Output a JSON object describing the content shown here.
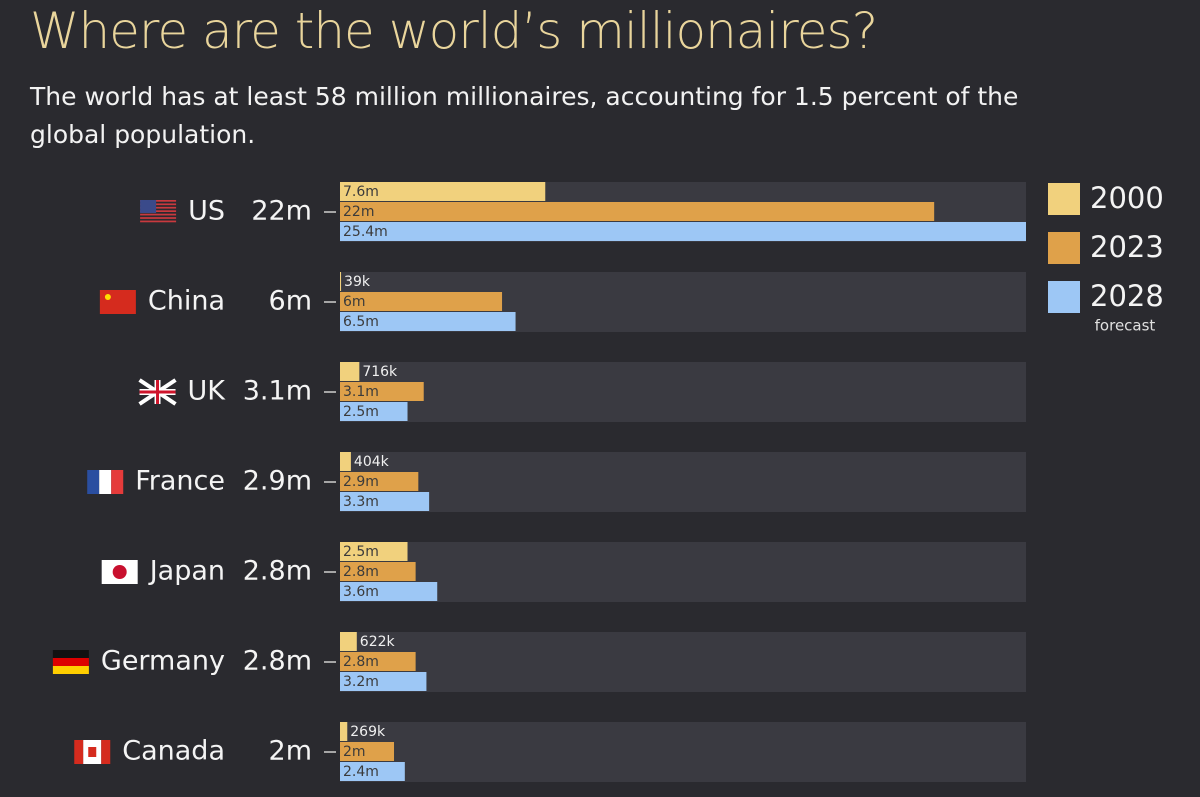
{
  "chart_data": {
    "type": "grouped-hbar",
    "title": "Where are the world’s millionaires?",
    "subtitle": "The world has at least 58 million millionaires, accounting for 1.5 percent of the global population.",
    "categories": [
      "US",
      "China",
      "UK",
      "France",
      "Japan",
      "Germany",
      "Canada"
    ],
    "category_labels": [
      "22m",
      "6m",
      "3.1m",
      "2.9m",
      "2.8m",
      "2.8m",
      "2m"
    ],
    "xlim": [
      0,
      25.4
    ],
    "series": [
      {
        "name": "2000",
        "color": "#f1d17d",
        "values": [
          7.6,
          0.039,
          0.716,
          0.404,
          2.5,
          0.622,
          0.269
        ],
        "value_labels": [
          "7.6m",
          "39k",
          "716k",
          "404k",
          "2.5m",
          "622k",
          "269k"
        ]
      },
      {
        "name": "2023",
        "color": "#dfa14a",
        "values": [
          22,
          6,
          3.1,
          2.9,
          2.8,
          2.8,
          2
        ],
        "value_labels": [
          "22m",
          "6m",
          "3.1m",
          "2.9m",
          "2.8m",
          "2.8m",
          "2m"
        ]
      },
      {
        "name": "2028",
        "note": "forecast",
        "color": "#9dc7f5",
        "values": [
          25.4,
          6.5,
          2.5,
          3.3,
          3.6,
          3.2,
          2.4
        ],
        "value_labels": [
          "25.4m",
          "6.5m",
          "2.5m",
          "3.3m",
          "3.6m",
          "3.2m",
          "2.4m"
        ]
      }
    ]
  }
}
